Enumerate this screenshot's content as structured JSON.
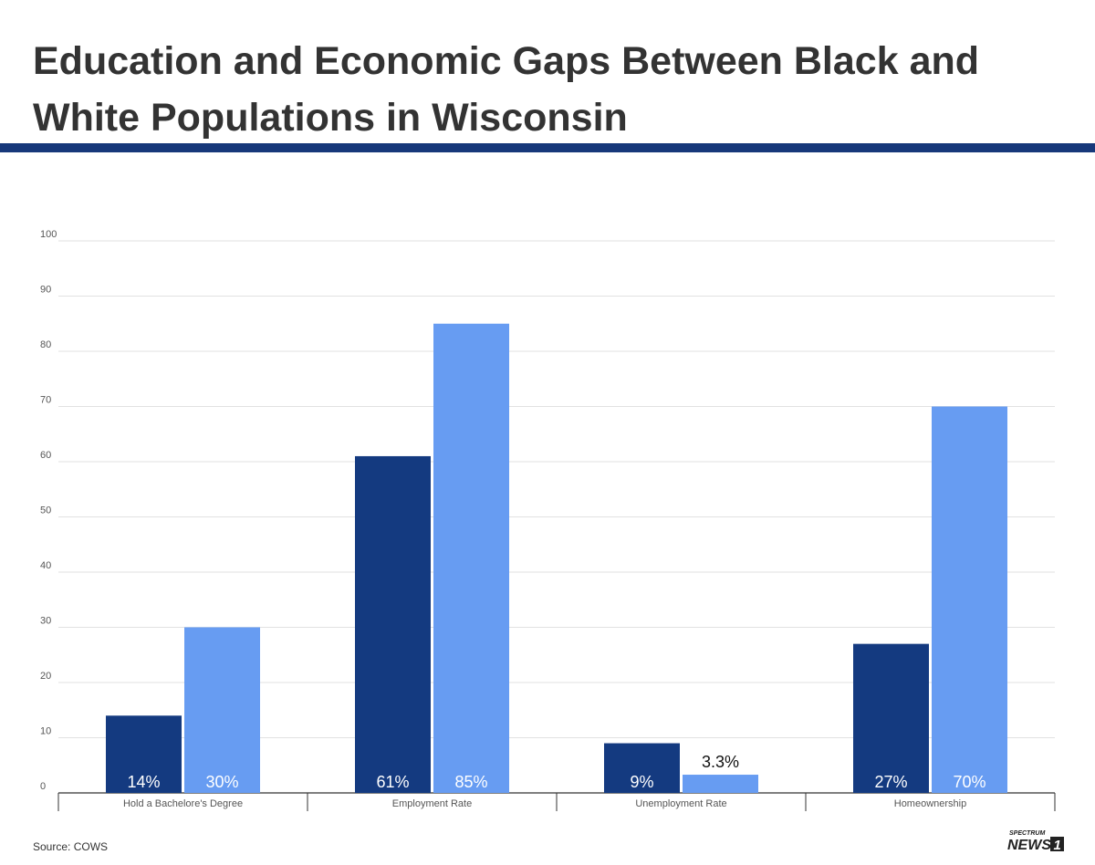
{
  "title": "Education and Economic Gaps Between Black and White Populations in Wisconsin",
  "source": "Source: COWS",
  "logo": {
    "top": "SPECTRUM",
    "bottom": "NEWS",
    "number": "1"
  },
  "colors": {
    "black_series": "#143a80",
    "white_series": "#679cf2",
    "rule": "#17387a",
    "grid": "#e2e2e2",
    "text": "#333333"
  },
  "chart_data": {
    "type": "bar",
    "categories": [
      "Hold a Bachelore's Degree",
      "Employment Rate",
      "Unemployment Rate",
      "Homeownership"
    ],
    "series": [
      {
        "values": [
          14,
          61,
          9,
          27
        ],
        "labels": [
          "14%",
          "61%",
          "9%",
          "27%"
        ],
        "color": "#143a80"
      },
      {
        "values": [
          30,
          85,
          3.3,
          70
        ],
        "labels": [
          "30%",
          "85%",
          "3.3%",
          "70%"
        ],
        "color": "#679cf2"
      }
    ],
    "ylim": [
      0,
      100
    ],
    "yticks": [
      0,
      10,
      20,
      30,
      40,
      50,
      60,
      70,
      80,
      90,
      100
    ],
    "grid": true,
    "legend": "none"
  }
}
